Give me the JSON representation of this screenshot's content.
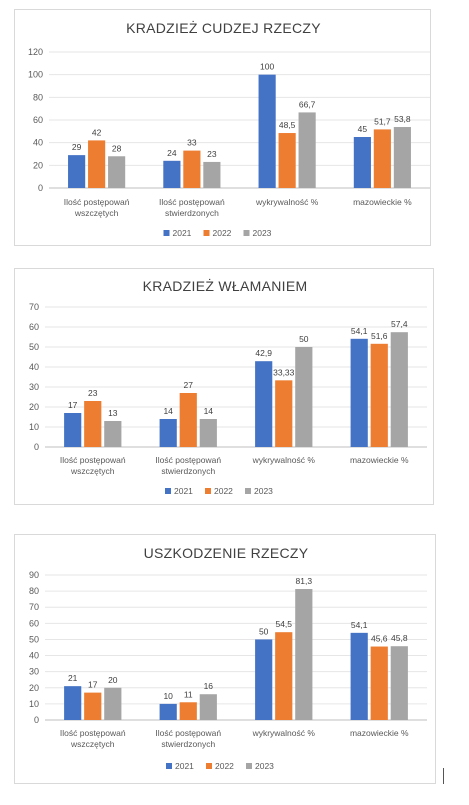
{
  "colors": {
    "2021": "#4472C4",
    "2022": "#ED7D31",
    "2023": "#A5A5A5"
  },
  "chart_data": [
    {
      "type": "bar",
      "title": "KRADZIEŻ CUDZEJ RZECZY",
      "categories": [
        [
          "Ilość postępowań",
          "wszczętych"
        ],
        [
          "Ilość postępowań",
          "stwierdzonych"
        ],
        [
          "wykrywalność %"
        ],
        [
          "mazowieckie %"
        ]
      ],
      "series": [
        {
          "name": "2021",
          "values": [
            29,
            24,
            100,
            45
          ],
          "labels": [
            "29",
            "24",
            "100",
            "45"
          ]
        },
        {
          "name": "2022",
          "values": [
            42,
            33,
            48.5,
            51.7
          ],
          "labels": [
            "42",
            "33",
            "48,5",
            "51,7"
          ]
        },
        {
          "name": "2023",
          "values": [
            28,
            23,
            66.7,
            53.8
          ],
          "labels": [
            "28",
            "23",
            "66,7",
            "53,8"
          ]
        }
      ],
      "yticks": [
        "0",
        "20",
        "40",
        "60",
        "80",
        "100",
        "120"
      ],
      "ylim": [
        0,
        120
      ],
      "grid": true,
      "legend": "bottom"
    },
    {
      "type": "bar",
      "title": "KRADZIEŻ WŁAMANIEM",
      "categories": [
        [
          "Ilość postępowań",
          "wszczętych"
        ],
        [
          "Ilość postępowań",
          "stwierdzonych"
        ],
        [
          "wykrywalność %"
        ],
        [
          "mazowieckie %"
        ]
      ],
      "series": [
        {
          "name": "2021",
          "values": [
            17,
            14,
            42.9,
            54.1
          ],
          "labels": [
            "17",
            "14",
            "42,9",
            "54,1"
          ]
        },
        {
          "name": "2022",
          "values": [
            23,
            27,
            33.33,
            51.6
          ],
          "labels": [
            "23",
            "27",
            "33,33",
            "51,6"
          ]
        },
        {
          "name": "2023",
          "values": [
            13,
            14,
            50,
            57.4
          ],
          "labels": [
            "13",
            "14",
            "50",
            "57,4"
          ]
        }
      ],
      "yticks": [
        "0",
        "10",
        "20",
        "30",
        "40",
        "50",
        "60",
        "70"
      ],
      "ylim": [
        0,
        70
      ],
      "grid": true,
      "legend": "bottom"
    },
    {
      "type": "bar",
      "title": "USZKODZENIE RZECZY",
      "categories": [
        [
          "Ilość postępowań",
          "wszczętych"
        ],
        [
          "Ilość postępowań",
          "stwierdzonych"
        ],
        [
          "wykrywalność %"
        ],
        [
          "mazowieckie %"
        ]
      ],
      "series": [
        {
          "name": "2021",
          "values": [
            21,
            10,
            50,
            54.1
          ],
          "labels": [
            "21",
            "10",
            "50",
            "54,1"
          ]
        },
        {
          "name": "2022",
          "values": [
            17,
            11,
            54.5,
            45.6
          ],
          "labels": [
            "17",
            "11",
            "54,5",
            "45,6"
          ]
        },
        {
          "name": "2023",
          "values": [
            20,
            16,
            81.3,
            45.8
          ],
          "labels": [
            "20",
            "16",
            "81,3",
            "45,8"
          ]
        }
      ],
      "yticks": [
        "0",
        "10",
        "20",
        "30",
        "40",
        "50",
        "60",
        "70",
        "80",
        "90"
      ],
      "ylim": [
        0,
        90
      ],
      "grid": true,
      "legend": "bottom"
    }
  ]
}
